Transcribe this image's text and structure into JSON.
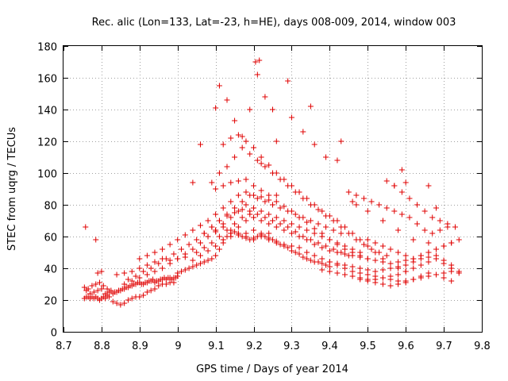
{
  "chart_data": {
    "type": "scatter",
    "title": "Rec. alic (Lon=133, Lat=-23, h=HE), days 008-009, 2014, window 003",
    "xlabel": "GPS time / Days of year 2014",
    "ylabel": "STEC from uqrg / TECUs",
    "xlim": [
      8.7,
      9.8
    ],
    "ylim": [
      0,
      180
    ],
    "x_ticks": [
      8.7,
      8.8,
      8.9,
      9.0,
      9.1,
      9.2,
      9.3,
      9.4,
      9.5,
      9.6,
      9.7,
      9.8
    ],
    "x_tick_labels": [
      "8.7",
      "8.8",
      "8.9",
      "9",
      "9.1",
      "9.2",
      "9.3",
      "9.4",
      "9.5",
      "9.6",
      "9.7",
      "9.8"
    ],
    "y_ticks": [
      0,
      20,
      40,
      60,
      80,
      100,
      120,
      140,
      160,
      180
    ],
    "y_tick_labels": [
      "0",
      "20",
      "40",
      "60",
      "80",
      "100",
      "120",
      "140",
      "160",
      "180"
    ],
    "grid": true,
    "legend": "none",
    "marker": "+",
    "color": "#e00000",
    "series": [
      {
        "name": "",
        "x": [
          8.755,
          8.76,
          8.765,
          8.77,
          8.775,
          8.78,
          8.785,
          8.79,
          8.795,
          8.8,
          8.805,
          8.81,
          8.76,
          8.77,
          8.78,
          8.79,
          8.8,
          8.81,
          8.815,
          8.82,
          8.755,
          8.765,
          8.775,
          8.785,
          8.795,
          8.805,
          8.815,
          8.825,
          8.835,
          8.845,
          8.855,
          8.865,
          8.875,
          8.885,
          8.895,
          8.905,
          8.915,
          8.925,
          8.935,
          8.945,
          8.955,
          8.965,
          8.975,
          8.985,
          8.995,
          8.83,
          8.84,
          8.85,
          8.86,
          8.87,
          8.88,
          8.89,
          8.9,
          8.91,
          8.92,
          8.93,
          8.94,
          8.95,
          8.96,
          8.97,
          8.98,
          8.99,
          8.82,
          8.83,
          8.84,
          8.85,
          8.86,
          8.87,
          8.88,
          8.89,
          8.9,
          8.91,
          8.92,
          8.93,
          8.94,
          8.95,
          8.96,
          8.97,
          8.98,
          8.99,
          9.0,
          8.84,
          8.86,
          8.88,
          8.9,
          8.92,
          8.94,
          8.96,
          8.98,
          9.0,
          9.02,
          8.86,
          8.88,
          8.9,
          8.92,
          8.94,
          8.96,
          8.98,
          9.0,
          9.02,
          9.04,
          9.06,
          9.08,
          9.1,
          9.12,
          9.14,
          9.16,
          9.18,
          9.2,
          9.22,
          9.24,
          8.87,
          8.89,
          8.91,
          8.93,
          8.95,
          8.97,
          8.99,
          9.01,
          9.03,
          9.05,
          9.07,
          9.09,
          9.11,
          9.13,
          9.15,
          9.17,
          9.19,
          8.9,
          8.92,
          8.94,
          8.96,
          8.98,
          9.0,
          9.02,
          9.04,
          9.06,
          9.08,
          9.1,
          9.12,
          9.14,
          9.16,
          9.18,
          9.2,
          9.22,
          9.24,
          9.26,
          9.0,
          9.01,
          9.02,
          9.03,
          9.04,
          9.05,
          9.06,
          9.07,
          9.08,
          9.09,
          9.1,
          9.11,
          9.12,
          9.13,
          9.14,
          9.15,
          9.16,
          9.17,
          9.18,
          9.19,
          9.2,
          9.21,
          9.22,
          9.23,
          9.24,
          9.25,
          9.26,
          9.27,
          9.28,
          9.29,
          9.3,
          9.31,
          9.32,
          9.33,
          9.34,
          9.35,
          9.36,
          9.37,
          9.38,
          9.39,
          9.4,
          9.04,
          9.06,
          9.08,
          9.1,
          9.12,
          9.14,
          9.16,
          9.18,
          9.2,
          9.22,
          9.24,
          9.26,
          9.28,
          9.3,
          9.32,
          9.34,
          9.36,
          9.38,
          9.4,
          9.42,
          9.05,
          9.07,
          9.09,
          9.11,
          9.13,
          9.15,
          9.17,
          9.19,
          9.21,
          9.23,
          9.25,
          9.27,
          9.29,
          9.31,
          9.33,
          9.35,
          9.37,
          9.39,
          9.41,
          9.43,
          9.45,
          9.06,
          9.08,
          9.1,
          9.12,
          9.14,
          9.16,
          9.18,
          9.2,
          9.22,
          9.24,
          9.26,
          9.28,
          9.3,
          9.32,
          9.34,
          9.36,
          9.38,
          9.4,
          9.42,
          9.44,
          9.46,
          9.48,
          9.07,
          9.09,
          9.11,
          9.13,
          9.15,
          9.17,
          9.19,
          9.21,
          9.23,
          9.25,
          9.27,
          9.29,
          9.31,
          9.33,
          9.35,
          9.37,
          9.39,
          9.41,
          9.43,
          9.1,
          9.12,
          9.14,
          9.16,
          9.18,
          9.2,
          9.22,
          9.24,
          9.26,
          9.28,
          9.3,
          9.32,
          9.34,
          9.36,
          9.38,
          9.4,
          9.42,
          9.44,
          9.46,
          9.48,
          9.5,
          9.11,
          9.13,
          9.15,
          9.17,
          9.19,
          9.21,
          9.23,
          9.25,
          9.27,
          9.29,
          9.31,
          9.33,
          9.35,
          9.37,
          9.39,
          9.41,
          9.43,
          9.45,
          9.47,
          9.49,
          9.51,
          9.53,
          9.55,
          9.12,
          9.14,
          9.16,
          9.18,
          9.2,
          9.22,
          9.24,
          9.26,
          9.28,
          9.3,
          9.32,
          9.34,
          9.36,
          9.38,
          9.4,
          9.42,
          9.44,
          9.46,
          9.48,
          9.5,
          9.52,
          9.54,
          9.56,
          9.58,
          9.6,
          9.14,
          9.16,
          9.18,
          9.2,
          9.22,
          9.24,
          9.26,
          9.28,
          9.3,
          9.32,
          9.34,
          9.36,
          9.38,
          9.4,
          9.42,
          9.44,
          9.46,
          9.48,
          9.5,
          9.52,
          9.54,
          9.56,
          9.58,
          9.6,
          9.62,
          9.64,
          9.66,
          9.68,
          9.7,
          9.72,
          9.38,
          9.4,
          9.42,
          9.44,
          9.46,
          9.48,
          9.5,
          9.52,
          9.54,
          9.56,
          9.58,
          9.6,
          9.62,
          9.64,
          9.66,
          9.68,
          9.7,
          9.72,
          9.74,
          9.4,
          9.42,
          9.44,
          9.46,
          9.48,
          9.5,
          9.52,
          9.54,
          9.56,
          9.58,
          9.6,
          9.62,
          9.64,
          9.66,
          9.68,
          9.7,
          9.72,
          9.74,
          9.42,
          9.44,
          9.46,
          9.48,
          9.5,
          9.52,
          9.54,
          9.56,
          9.58,
          9.6,
          9.62,
          9.64,
          9.66,
          9.68,
          9.7,
          9.72,
          9.45,
          9.47,
          9.49,
          9.51,
          9.53,
          9.55,
          9.57,
          9.59,
          9.61,
          9.63,
          9.65,
          9.67,
          9.69,
          9.71,
          9.5,
          9.52,
          9.54,
          9.56,
          9.58,
          9.6,
          9.62,
          9.64,
          9.66,
          9.68,
          9.7,
          9.72,
          9.74,
          9.55,
          9.57,
          9.59,
          9.61,
          9.63,
          9.65,
          9.67,
          9.69,
          9.71,
          9.73,
          9.48,
          9.5,
          9.52,
          9.54,
          9.56,
          9.58,
          9.6,
          9.62,
          9.64,
          9.66,
          9.68,
          9.7,
          9.72,
          9.46,
          9.5,
          9.54,
          9.58,
          9.62,
          9.66,
          9.7,
          8.758,
          8.785,
          8.79,
          8.8,
          9.04,
          9.06,
          9.09,
          9.1,
          9.1,
          9.11,
          9.13,
          9.15,
          9.17,
          9.19,
          9.205,
          9.21,
          9.215,
          9.22,
          9.23,
          9.25,
          9.26,
          9.29,
          9.3,
          9.33,
          9.35,
          9.36,
          9.39,
          9.42,
          9.43,
          9.47,
          9.57,
          9.59,
          9.6,
          9.66,
          9.68
        ],
        "y": [
          21,
          22,
          22,
          21,
          22,
          21,
          22,
          21,
          20,
          21,
          22,
          21,
          26,
          24,
          25,
          26,
          27,
          24,
          23,
          22,
          28,
          27,
          29,
          30,
          31,
          29,
          27,
          26,
          25,
          26,
          27,
          28,
          29,
          30,
          31,
          30,
          31,
          32,
          33,
          32,
          33,
          34,
          34,
          33,
          34,
          19,
          18,
          17,
          18,
          20,
          21,
          22,
          22,
          23,
          25,
          26,
          27,
          29,
          30,
          30,
          31,
          31,
          25,
          24,
          25,
          26,
          27,
          28,
          29,
          30,
          31,
          30,
          31,
          32,
          31,
          32,
          33,
          33,
          34,
          34,
          35,
          36,
          37,
          38,
          40,
          42,
          44,
          46,
          45,
          46,
          47,
          30,
          32,
          34,
          36,
          38,
          40,
          43,
          46,
          49,
          52,
          56,
          60,
          63,
          66,
          64,
          61,
          60,
          58,
          60,
          62,
          33,
          35,
          38,
          40,
          43,
          46,
          49,
          52,
          55,
          58,
          62,
          66,
          70,
          73,
          75,
          77,
          74,
          46,
          48,
          50,
          52,
          55,
          58,
          61,
          64,
          67,
          70,
          74,
          78,
          82,
          86,
          88,
          86,
          85,
          83,
          86,
          37,
          38,
          39,
          40,
          41,
          42,
          43,
          44,
          45,
          46,
          48,
          52,
          56,
          60,
          62,
          63,
          62,
          60,
          59,
          58,
          59,
          60,
          61,
          60,
          59,
          58,
          57,
          55,
          54,
          53,
          51,
          50,
          49,
          47,
          46,
          45,
          44,
          44,
          43,
          42,
          41,
          45,
          48,
          51,
          54,
          58,
          62,
          66,
          70,
          72,
          70,
          68,
          66,
          64,
          62,
          60,
          58,
          55,
          53,
          51,
          50,
          50,
          53,
          56,
          60,
          64,
          68,
          72,
          76,
          74,
          72,
          70,
          68,
          66,
          63,
          60,
          58,
          56,
          54,
          52,
          50,
          48,
          56,
          60,
          64,
          68,
          72,
          76,
          80,
          78,
          76,
          74,
          72,
          70,
          68,
          66,
          64,
          62,
          60,
          58,
          56,
          54,
          52,
          50,
          62,
          66,
          70,
          74,
          78,
          82,
          86,
          84,
          82,
          80,
          78,
          76,
          74,
          72,
          70,
          68,
          66,
          64,
          62,
          90,
          92,
          94,
          95,
          96,
          92,
          89,
          86,
          82,
          79,
          76,
          72,
          69,
          65,
          62,
          58,
          55,
          52,
          50,
          48,
          46,
          100,
          104,
          110,
          116,
          112,
          108,
          104,
          100,
          96,
          92,
          88,
          84,
          80,
          77,
          73,
          70,
          66,
          62,
          58,
          55,
          52,
          50,
          48,
          118,
          122,
          124,
          120,
          116,
          110,
          105,
          100,
          96,
          92,
          88,
          84,
          80,
          76,
          73,
          70,
          66,
          62,
          58,
          54,
          50,
          46,
          43,
          40,
          38,
          60,
          61,
          62,
          64,
          62,
          58,
          56,
          55,
          54,
          53,
          50,
          48,
          46,
          44,
          42,
          40,
          38,
          37,
          36,
          35,
          34,
          33,
          32,
          32,
          33,
          34,
          35,
          36,
          37,
          38,
          39,
          38,
          37,
          36,
          35,
          34,
          33,
          33,
          34,
          35,
          36,
          38,
          40,
          42,
          44,
          46,
          43,
          40,
          37,
          44,
          43,
          42,
          41,
          40,
          39,
          38,
          39,
          40,
          41,
          42,
          44,
          46,
          47,
          48,
          45,
          42,
          38,
          50,
          49,
          48,
          47,
          46,
          45,
          44,
          43,
          44,
          45,
          46,
          48,
          50,
          52,
          54,
          56,
          88,
          86,
          84,
          82,
          80,
          78,
          76,
          74,
          72,
          68,
          64,
          62,
          64,
          66,
          58,
          56,
          54,
          52,
          50,
          48,
          46,
          48,
          50,
          52,
          54,
          56,
          58,
          95,
          92,
          88,
          84,
          80,
          76,
          72,
          70,
          68,
          66,
          33,
          32,
          31,
          30,
          29,
          30,
          31,
          33,
          35,
          37,
          36,
          34,
          32,
          82,
          76,
          70,
          64,
          58,
          56,
          54,
          66,
          58,
          37,
          38,
          94,
          118,
          94,
          64,
          141,
          155,
          146,
          133,
          123,
          140,
          170,
          162,
          171,
          106,
          148,
          140,
          120,
          158,
          135,
          126,
          142,
          118,
          110,
          108,
          120,
          80,
          92,
          102,
          94,
          92,
          78
        ]
      }
    ]
  }
}
